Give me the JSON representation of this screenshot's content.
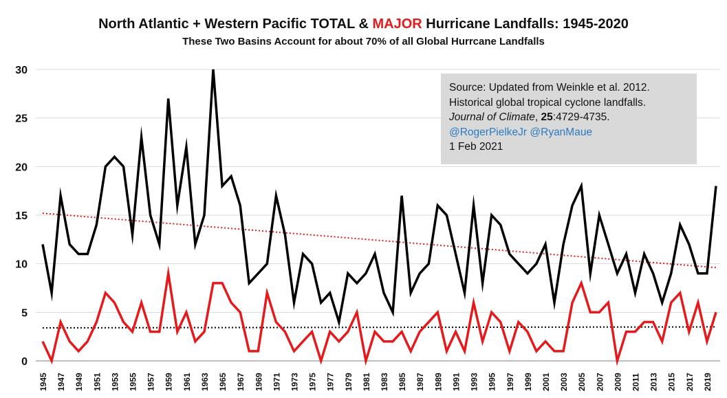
{
  "title": {
    "prefix": "North Atlantic + Western Pacific TOTAL & ",
    "highlight": "MAJOR",
    "suffix": " Hurricane Landfalls: 1945-2020"
  },
  "subtitle": "These Two Basins Account  for about 70% of all Global Hurrcane Landfalls",
  "source_box": {
    "line1": "Source: Updated from Weinkle et al. 2012.",
    "line2": "Historical global tropical cyclone landfalls.",
    "journal": "Journal of Climate",
    "sep": ", ",
    "volume": "25",
    "pages": ":4729-4735.",
    "handles": "@RogerPielkeJr @RyanMaue",
    "date": "1 Feb 2021"
  },
  "colors": {
    "total": "#000000",
    "major": "#e41a1c",
    "trend_total": "#e41a1c",
    "trend_major": "#000000",
    "gridline": "#d9d9d9",
    "link": "#2b7bc1",
    "box": "#d9d9d9"
  },
  "chart_data": {
    "type": "line",
    "xlabel": "",
    "ylabel": "",
    "ylim": [
      0,
      30
    ],
    "yticks": [
      0,
      5,
      10,
      15,
      20,
      25,
      30
    ],
    "grid": "horizontal",
    "x": [
      1945,
      1946,
      1947,
      1948,
      1949,
      1950,
      1951,
      1952,
      1953,
      1954,
      1955,
      1956,
      1957,
      1958,
      1959,
      1960,
      1961,
      1962,
      1963,
      1964,
      1965,
      1966,
      1967,
      1968,
      1969,
      1970,
      1971,
      1972,
      1973,
      1974,
      1975,
      1976,
      1977,
      1978,
      1979,
      1980,
      1981,
      1982,
      1983,
      1984,
      1985,
      1986,
      1987,
      1988,
      1989,
      1990,
      1991,
      1992,
      1993,
      1994,
      1995,
      1996,
      1997,
      1998,
      1999,
      2000,
      2001,
      2002,
      2003,
      2004,
      2005,
      2006,
      2007,
      2008,
      2009,
      2010,
      2011,
      2012,
      2013,
      2014,
      2015,
      2016,
      2017,
      2018,
      2019,
      2020
    ],
    "xtick_labels": [
      "1945",
      "1947",
      "1949",
      "1951",
      "1953",
      "1955",
      "1957",
      "1959",
      "1961",
      "1963",
      "1965",
      "1967",
      "1969",
      "1971",
      "1973",
      "1975",
      "1977",
      "1979",
      "1981",
      "1983",
      "1985",
      "1987",
      "1989",
      "1991",
      "1993",
      "1995",
      "1997",
      "1999",
      "2001",
      "2003",
      "2005",
      "2007",
      "2009",
      "2011",
      "2013",
      "2015",
      "2017",
      "2019"
    ],
    "series": [
      {
        "key": "total",
        "values": [
          12,
          7,
          17,
          12,
          11,
          11,
          14,
          20,
          21,
          20,
          13,
          23,
          15,
          12,
          27,
          16,
          22,
          12,
          15,
          30,
          18,
          19,
          16,
          8,
          9,
          10,
          17,
          13,
          6,
          11,
          10,
          6,
          7,
          4,
          9,
          8,
          9,
          11,
          7,
          5,
          17,
          7,
          9,
          10,
          16,
          15,
          11,
          7,
          16,
          8,
          15,
          14,
          11,
          10,
          9,
          10,
          12,
          6,
          12,
          16,
          18,
          9,
          15,
          12,
          9,
          11,
          7,
          11,
          9,
          6,
          9,
          14,
          12,
          9,
          9,
          18
        ]
      },
      {
        "key": "major",
        "values": [
          2,
          0,
          4,
          2,
          1,
          2,
          4,
          7,
          6,
          4,
          3,
          6,
          3,
          3,
          9,
          3,
          5,
          2,
          3,
          8,
          8,
          6,
          5,
          1,
          1,
          7,
          4,
          3,
          1,
          2,
          3,
          0,
          3,
          2,
          3,
          5,
          0,
          3,
          2,
          2,
          3,
          1,
          3,
          4,
          5,
          1,
          3,
          1,
          6,
          2,
          5,
          4,
          1,
          4,
          3,
          1,
          2,
          1,
          1,
          6,
          8,
          5,
          5,
          6,
          0,
          3,
          3,
          4,
          4,
          2,
          6,
          7,
          3,
          6,
          2,
          5
        ]
      }
    ],
    "trend_lines": [
      {
        "key": "total_trend",
        "start": 15.2,
        "end": 9.6
      },
      {
        "key": "major_trend",
        "start": 3.4,
        "end": 3.5
      }
    ]
  }
}
